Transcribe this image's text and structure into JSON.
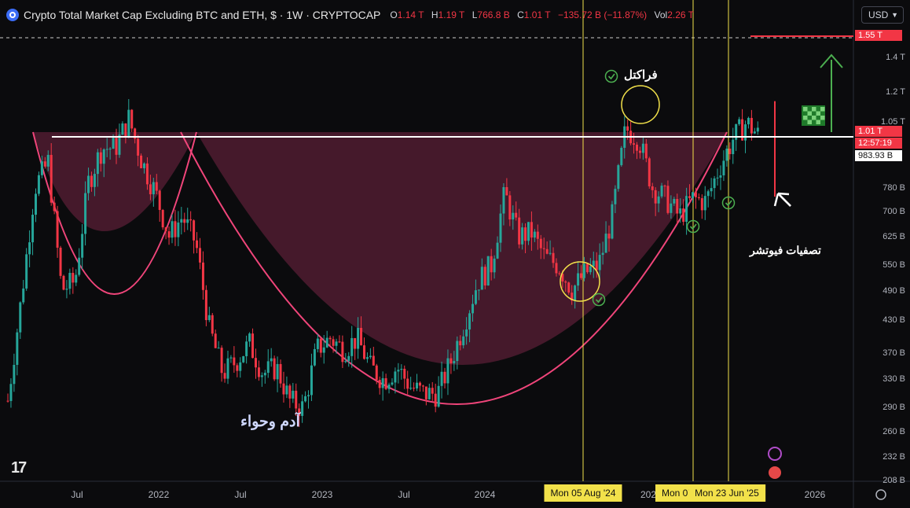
{
  "header": {
    "title": "Crypto Total Market Cap Excluding BTC and ETH, $ · 1W · CRYPTOCAP",
    "open_label": "O",
    "open_value": "1.14 T",
    "high_label": "H",
    "high_value": "1.19 T",
    "low_label": "L",
    "low_value": "766.8 B",
    "close_label": "C",
    "close_value": "1.01 T",
    "change_value": "−135.72 B (−11.87%)",
    "vol_label": "Vol",
    "vol_value": "2.26 T"
  },
  "currency": {
    "label": "USD"
  },
  "axis": {
    "y_ticks": [
      "1.55 T",
      "1.4 T",
      "1.2 T",
      "1.05 T",
      "780 B",
      "700 B",
      "625 B",
      "550 B",
      "490 B",
      "430 B",
      "370 B",
      "330 B",
      "290 B",
      "260 B",
      "232 B",
      "208 B"
    ],
    "x_ticks": [
      "Jul",
      "2022",
      "Jul",
      "2023",
      "Jul",
      "2024",
      "202",
      "2026"
    ],
    "x_highlights": [
      "Mon 05 Aug '24",
      "Mon 07",
      "Mon 23 Jun '25"
    ]
  },
  "price_boxes": {
    "target": "1.55 T",
    "current_price": "1.01 T",
    "countdown": "12:57:19",
    "support": "983.93 B"
  },
  "annotations": {
    "fractal": "فراكتل",
    "adam_eve": "آدم وحواء",
    "futures_liq": "تصفيات فيوتشر"
  },
  "colors": {
    "bull": "#26a69a",
    "bear": "#f23645",
    "cup_fill": "#5a1f36",
    "cup_line": "#f0457a",
    "marker": "#4caf50",
    "vline": "#f2e14a",
    "resistance": "#ffffff"
  },
  "chart_data": {
    "type": "candlestick",
    "title": "Crypto Total Market Cap Excluding BTC and ETH, $ · 1W · CRYPTOCAP",
    "scale": "log",
    "ylim": [
      200,
      1600
    ],
    "y_unit": "B USD",
    "resistance_level": 1010,
    "target_level": 1550,
    "series": [
      {
        "name": "Crypto Total Market Cap Excluding BTC and ETH",
        "x": [
          "2021-02",
          "2021-03",
          "2021-04",
          "2021-05",
          "2021-06",
          "2021-07",
          "2021-08",
          "2021-09",
          "2021-10",
          "2021-11",
          "2021-12",
          "2022-01",
          "2022-02",
          "2022-03",
          "2022-04",
          "2022-05",
          "2022-06",
          "2022-07",
          "2022-08",
          "2022-09",
          "2022-10",
          "2022-11",
          "2022-12",
          "2023-01",
          "2023-02",
          "2023-03",
          "2023-04",
          "2023-05",
          "2023-06",
          "2023-07",
          "2023-08",
          "2023-09",
          "2023-10",
          "2023-11",
          "2023-12",
          "2024-01",
          "2024-02",
          "2024-03",
          "2024-04",
          "2024-05",
          "2024-06",
          "2024-07",
          "2024-08",
          "2024-09",
          "2024-10",
          "2024-11",
          "2024-12",
          "2025-01",
          "2025-02",
          "2025-03",
          "2025-04",
          "2025-05",
          "2025-06",
          "2025-07",
          "2025-08",
          "2025-09",
          "2025-10"
        ],
        "y": [
          300,
          480,
          800,
          900,
          500,
          520,
          820,
          960,
          960,
          1100,
          900,
          780,
          640,
          700,
          620,
          420,
          340,
          360,
          390,
          340,
          350,
          300,
          290,
          380,
          400,
          380,
          400,
          350,
          330,
          350,
          320,
          310,
          310,
          360,
          430,
          520,
          560,
          780,
          640,
          650,
          580,
          560,
          500,
          540,
          560,
          700,
          1050,
          1000,
          800,
          760,
          700,
          760,
          750,
          880,
          1000,
          1080,
          1010
        ]
      }
    ]
  }
}
